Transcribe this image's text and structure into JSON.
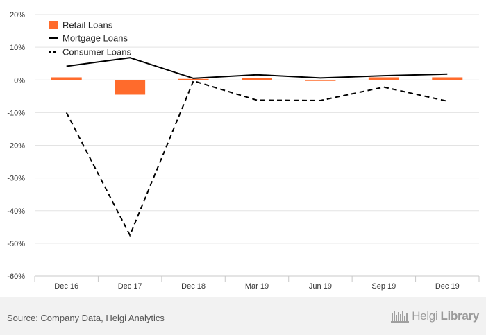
{
  "chart_data": {
    "type": "bar",
    "categories": [
      "Dec 16",
      "Dec 17",
      "Dec 18",
      "Mar 19",
      "Jun 19",
      "Sep 19",
      "Dec 19"
    ],
    "series": [
      {
        "name": "Retail Loans",
        "kind": "bar",
        "color": "#ff6b2c",
        "values": [
          0.8,
          -4.5,
          0.3,
          0.5,
          -0.2,
          0.8,
          0.8
        ]
      },
      {
        "name": "Mortgage Loans",
        "kind": "line",
        "style": "solid",
        "color": "#000000",
        "values": [
          4.2,
          6.8,
          0.5,
          1.6,
          0.6,
          1.3,
          1.8
        ]
      },
      {
        "name": "Consumer Loans",
        "kind": "line",
        "style": "dashed",
        "color": "#000000",
        "values": [
          -10.0,
          -47.5,
          -0.3,
          -6.2,
          -6.3,
          -2.2,
          -6.5
        ]
      }
    ],
    "yticks": [
      "20%",
      "10%",
      "0%",
      "-10%",
      "-20%",
      "-30%",
      "-40%",
      "-50%",
      "-60%"
    ],
    "ylim": [
      -60,
      20
    ],
    "grid": true,
    "legend": "top-left"
  },
  "footer": {
    "source": "Source: Company Data, Helgi Analytics",
    "logo_light": "Helgi",
    "logo_bold": "Library"
  },
  "colors": {
    "bar": "#ff6b2c",
    "grid": "#e3e3e3",
    "footer_bg": "#f2f2f2"
  }
}
